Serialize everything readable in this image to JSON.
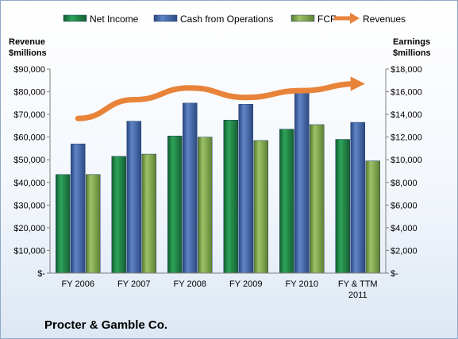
{
  "chart_data": {
    "type": "bar",
    "categories": [
      "FY 2006",
      "FY 2007",
      "FY 2008",
      "FY 2009",
      "FY 2010",
      "FY & TTM 2011"
    ],
    "series": [
      {
        "name": "Net Income",
        "axis": "right",
        "color": "#1e8a4a",
        "values": [
          8700,
          10300,
          12100,
          13500,
          12700,
          11800
        ]
      },
      {
        "name": "Cash from Operations",
        "axis": "right",
        "color": "#3f63a6",
        "values": [
          11400,
          13400,
          15000,
          14900,
          16100,
          13300
        ]
      },
      {
        "name": "FCF",
        "axis": "right",
        "color": "#7ea64c",
        "values": [
          8700,
          10500,
          12000,
          11700,
          13100,
          9900
        ]
      }
    ],
    "line_series": {
      "name": "Revenues",
      "axis": "left",
      "color": "#e8833a",
      "values": [
        68200,
        76500,
        81700,
        77500,
        80500,
        83500
      ]
    },
    "left_axis": {
      "title_lines": [
        "Revenue",
        "$millions"
      ],
      "ylim": [
        0,
        90000
      ],
      "ticks": [
        "$-",
        "$10,000",
        "$20,000",
        "$30,000",
        "$40,000",
        "$50,000",
        "$60,000",
        "$70,000",
        "$80,000",
        "$90,000"
      ]
    },
    "right_axis": {
      "title_lines": [
        "Earnings",
        "$millions"
      ],
      "ylim": [
        0,
        18000
      ],
      "ticks": [
        "$-",
        "$2,000",
        "$4,000",
        "$6,000",
        "$8,000",
        "$10,000",
        "$12,000",
        "$14,000",
        "$16,000",
        "$18,000"
      ]
    },
    "category_label_lines": [
      [
        "FY 2006"
      ],
      [
        "FY 2007"
      ],
      [
        "FY 2008"
      ],
      [
        "FY 2009"
      ],
      [
        "FY 2010"
      ],
      [
        "FY & TTM",
        "2011"
      ]
    ],
    "legend": {
      "position": "top",
      "items": [
        "Net Income",
        "Cash from Operations",
        "FCF",
        "Revenues"
      ]
    },
    "grid": false
  },
  "company_name": "Procter & Gamble Co."
}
